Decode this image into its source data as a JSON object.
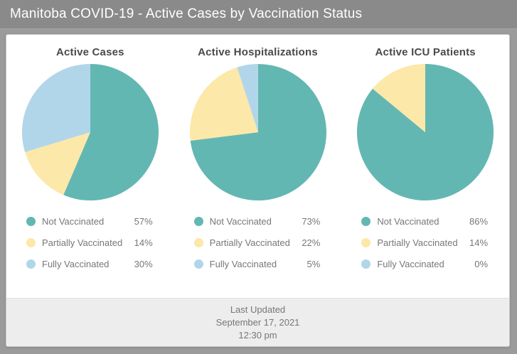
{
  "header": {
    "title": "Manitoba COVID-19 - Active Cases by Vaccination Status"
  },
  "palette": [
    "#63b7b2",
    "#fce8a8",
    "#b2d6e9"
  ],
  "chart_data": [
    {
      "type": "pie",
      "title": "Active Cases",
      "categories": [
        "Not Vaccinated",
        "Partially Vaccinated",
        "Fully Vaccinated"
      ],
      "values": [
        57,
        14,
        30
      ],
      "labels": [
        "57%",
        "14%",
        "30%"
      ],
      "start_angle_deg": 0,
      "direction": "clockwise",
      "legend_position": "bottom"
    },
    {
      "type": "pie",
      "title": "Active Hospitalizations",
      "categories": [
        "Not Vaccinated",
        "Partially Vaccinated",
        "Fully Vaccinated"
      ],
      "values": [
        73,
        22,
        5
      ],
      "labels": [
        "73%",
        "22%",
        "5%"
      ],
      "start_angle_deg": 0,
      "direction": "clockwise",
      "legend_position": "bottom"
    },
    {
      "type": "pie",
      "title": "Active ICU Patients",
      "categories": [
        "Not Vaccinated",
        "Partially Vaccinated",
        "Fully Vaccinated"
      ],
      "values": [
        86,
        14,
        0
      ],
      "labels": [
        "86%",
        "14%",
        "0%"
      ],
      "start_angle_deg": 0,
      "direction": "clockwise",
      "legend_position": "bottom"
    }
  ],
  "footer": {
    "last_updated_label": "Last Updated",
    "date": "September 17, 2021",
    "time": "12:30 pm"
  }
}
